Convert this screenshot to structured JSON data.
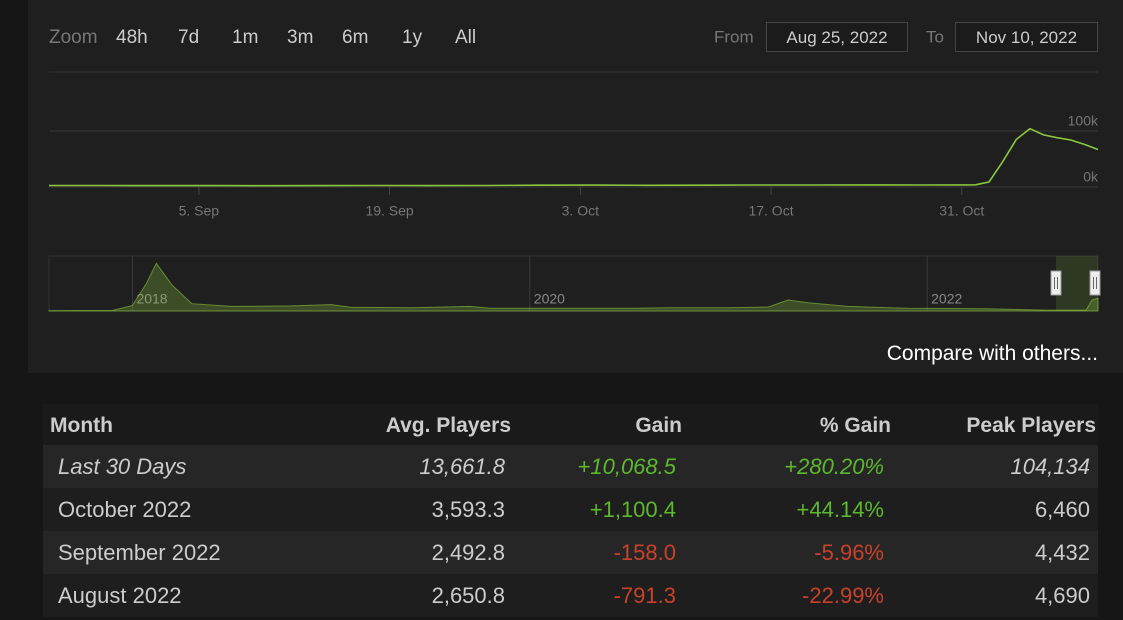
{
  "zoom": {
    "label": "Zoom",
    "options": [
      "48h",
      "7d",
      "1m",
      "3m",
      "6m",
      "1y",
      "All"
    ]
  },
  "range": {
    "from_label": "From",
    "from": "Aug 25, 2022",
    "to_label": "To",
    "to": "Nov 10, 2022"
  },
  "chart_data": [
    {
      "type": "line",
      "color": "#8cc63f",
      "x": [
        "2022-08-25",
        "2022-08-29",
        "2022-09-02",
        "2022-09-06",
        "2022-09-10",
        "2022-09-14",
        "2022-09-18",
        "2022-09-22",
        "2022-09-26",
        "2022-09-30",
        "2022-10-04",
        "2022-10-08",
        "2022-10-12",
        "2022-10-16",
        "2022-10-20",
        "2022-10-24",
        "2022-10-28",
        "2022-10-31",
        "2022-11-01",
        "2022-11-02",
        "2022-11-03",
        "2022-11-04",
        "2022-11-05",
        "2022-11-06",
        "2022-11-07",
        "2022-11-08",
        "2022-11-09",
        "2022-11-10"
      ],
      "values": [
        2600,
        2700,
        2500,
        2500,
        2400,
        2500,
        2600,
        2500,
        2700,
        3200,
        3400,
        3000,
        3300,
        3500,
        3600,
        3800,
        3500,
        3700,
        4000,
        9000,
        45000,
        85000,
        104134,
        93000,
        88000,
        84000,
        76000,
        67000
      ],
      "xlim": [
        "2022-08-25",
        "2022-11-10"
      ],
      "xticks": [
        {
          "value": "2022-09-05",
          "label": "5. Sep"
        },
        {
          "value": "2022-09-19",
          "label": "19. Sep"
        },
        {
          "value": "2022-10-03",
          "label": "3. Oct"
        },
        {
          "value": "2022-10-17",
          "label": "17. Oct"
        },
        {
          "value": "2022-10-31",
          "label": "31. Oct"
        }
      ],
      "ylim": [
        0,
        200000
      ],
      "yticks": [
        {
          "value": 0,
          "label": "0k"
        },
        {
          "value": 100000,
          "label": "100k"
        }
      ],
      "grid": true
    },
    {
      "type": "area",
      "color": "#8cc63f",
      "x": [
        2017.58,
        2017.9,
        2018.0,
        2018.07,
        2018.12,
        2018.2,
        2018.3,
        2018.5,
        2018.8,
        2019.0,
        2019.1,
        2019.4,
        2019.7,
        2019.8,
        2020.0,
        2020.5,
        2020.7,
        2021.0,
        2021.2,
        2021.3,
        2021.4,
        2021.6,
        2021.9,
        2022.3,
        2022.6,
        2022.8,
        2022.83,
        2022.86
      ],
      "values": [
        2000,
        3000,
        30000,
        150000,
        260000,
        140000,
        40000,
        25000,
        28000,
        35000,
        20000,
        18000,
        25000,
        15000,
        15000,
        15000,
        18000,
        18000,
        22000,
        60000,
        45000,
        25000,
        15000,
        12000,
        5000,
        5000,
        60000,
        70000
      ],
      "xlim": [
        2017.58,
        2022.86
      ],
      "xticks": [
        2018,
        2020,
        2022
      ],
      "ylim": [
        0,
        300000
      ]
    }
  ],
  "compare": "Compare with others...",
  "table": {
    "columns": [
      "Month",
      "Avg. Players",
      "Gain",
      "% Gain",
      "Peak Players"
    ],
    "rows": [
      [
        "Last 30 Days",
        "13,661.8",
        "+10,068.5",
        "+280.20%",
        "104,134"
      ],
      [
        "October 2022",
        "3,593.3",
        "+1,100.4",
        "+44.14%",
        "6,460"
      ],
      [
        "September 2022",
        "2,492.8",
        "-158.0",
        "-5.96%",
        "4,432"
      ],
      [
        "August 2022",
        "2,650.8",
        "-791.3",
        "-22.99%",
        "4,690"
      ]
    ]
  }
}
